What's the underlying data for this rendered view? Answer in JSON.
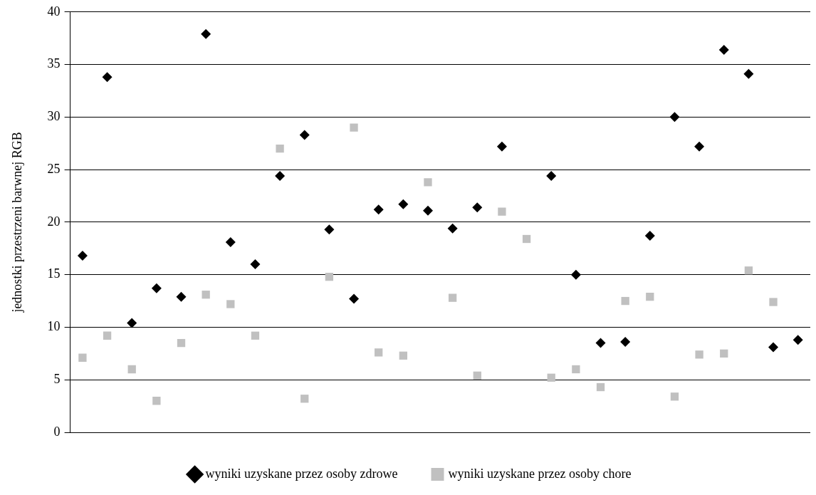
{
  "chart_data": {
    "type": "scatter",
    "ylabel": "jednostki przestrzeni barwnej RGB",
    "categories": [
      null,
      null,
      null,
      null,
      null,
      null,
      null,
      null,
      null,
      null,
      null,
      null,
      null,
      null,
      null,
      null,
      null,
      null,
      null,
      null,
      null,
      null,
      null,
      null,
      null,
      null,
      null,
      null,
      null,
      null
    ],
    "series": [
      {
        "name": "wyniki uzyskane przez osoby zdrowe",
        "color": "#000000",
        "marker": "diamond",
        "values": [
          16.8,
          33.8,
          10.4,
          13.7,
          12.9,
          37.9,
          18.1,
          16.0,
          24.4,
          28.3,
          19.3,
          12.7,
          21.2,
          21.7,
          21.1,
          19.4,
          21.4,
          27.2,
          null,
          24.4,
          15.0,
          8.5,
          8.6,
          18.7,
          30.0,
          27.2,
          36.4,
          34.1,
          8.1,
          8.8
        ]
      },
      {
        "name": "wyniki uzyskane przez osoby chore",
        "color": "#c0c0c0",
        "marker": "square",
        "values": [
          7.1,
          9.2,
          6.0,
          3.0,
          8.5,
          13.1,
          12.2,
          9.2,
          27.0,
          3.2,
          14.8,
          29.0,
          7.6,
          7.3,
          23.8,
          12.8,
          5.4,
          21.0,
          18.4,
          5.2,
          6.0,
          4.3,
          12.5,
          12.9,
          3.4,
          7.4,
          7.5,
          15.4,
          12.4,
          null
        ]
      }
    ],
    "ylim": [
      0,
      40
    ],
    "yticks": [
      0,
      5,
      10,
      15,
      20,
      25,
      30,
      35,
      40
    ],
    "grid": "y",
    "legend": "bottom",
    "tick_labels": "y"
  }
}
